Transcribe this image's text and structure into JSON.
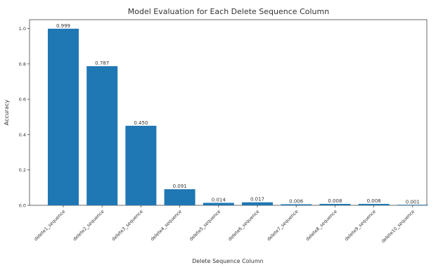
{
  "chart_data": {
    "type": "bar",
    "title": "Model Evaluation for Each Delete Sequence Column",
    "xlabel": "Delete Sequence Column",
    "ylabel": "Accuracy",
    "categories": [
      "delete1_sequence",
      "delete2_sequence",
      "delete3_sequence",
      "delete4_sequence",
      "delete5_sequence",
      "delete6_sequence",
      "delete7_sequence",
      "delete8_sequence",
      "delete9_sequence",
      "delete10_sequence"
    ],
    "values": [
      0.999,
      0.787,
      0.45,
      0.091,
      0.014,
      0.017,
      0.006,
      0.008,
      0.008,
      0.001
    ],
    "value_labels": [
      "0.999",
      "0.787",
      "0.450",
      "0.091",
      "0.014",
      "0.017",
      "0.006",
      "0.008",
      "0.008",
      "0.001"
    ],
    "y_ticks": [
      0.0,
      0.2,
      0.4,
      0.6,
      0.8,
      1.0
    ],
    "y_tick_labels": [
      "0.0",
      "0.2",
      "0.4",
      "0.6",
      "0.8",
      "1.0"
    ],
    "ylim": [
      0,
      1.05
    ],
    "grid": false,
    "legend": "none",
    "bar_color": "#1f77b4"
  }
}
